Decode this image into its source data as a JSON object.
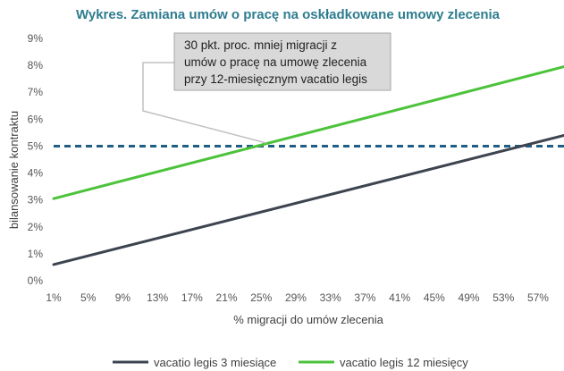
{
  "chart_data": {
    "type": "line",
    "title": "Wykres. Zamiana umów o pracę na oskładkowane umowy zlecenia",
    "xlabel": "% migracji do umów zlecenia",
    "ylabel": "bilansowanie kontraktu",
    "x_ticks": [
      "1%",
      "5%",
      "9%",
      "13%",
      "17%",
      "21%",
      "25%",
      "29%",
      "33%",
      "37%",
      "41%",
      "45%",
      "49%",
      "53%",
      "57%"
    ],
    "x_range": [
      1,
      60
    ],
    "ylim": [
      0,
      9
    ],
    "y_ticks": [
      "0%",
      "1%",
      "2%",
      "3%",
      "4%",
      "5%",
      "6%",
      "7%",
      "8%",
      "9%"
    ],
    "grid": false,
    "legend_position": "bottom",
    "series": [
      {
        "name": "vacatio legis 3 miesiące",
        "color": "#3d4450",
        "x": [
          1,
          60
        ],
        "y": [
          0.6,
          5.4
        ]
      },
      {
        "name": "vacatio legis 12 miesięcy",
        "color": "#4cc33b",
        "x": [
          1,
          60
        ],
        "y": [
          3.05,
          7.95
        ]
      }
    ],
    "reference_line": {
      "y": 5,
      "color": "#1f5f85",
      "style": "dashed"
    },
    "annotation": {
      "lines": [
        "30 pkt. proc. mniej migracji z",
        "umów o pracę na umowę zlecenia",
        "przy 12-miesięcznym vacatio legis"
      ],
      "target": {
        "x": 25,
        "y": 5
      }
    }
  }
}
